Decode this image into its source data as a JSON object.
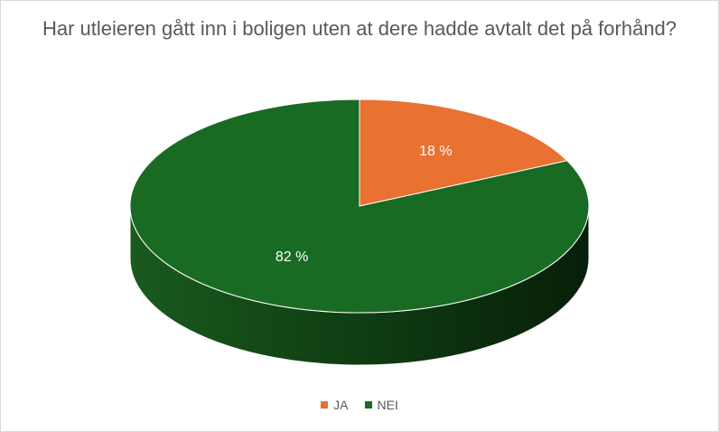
{
  "chart_data": {
    "type": "pie",
    "title": "Har utleieren gått inn i boligen uten at dere hadde avtalt det på forhånd?",
    "categories": [
      "JA",
      "NEI"
    ],
    "values": [
      18,
      82
    ],
    "data_labels": [
      "18 %",
      "82 %"
    ],
    "colors": [
      "#e97132",
      "#196b24"
    ],
    "legend_position": "bottom",
    "style": "3d"
  }
}
